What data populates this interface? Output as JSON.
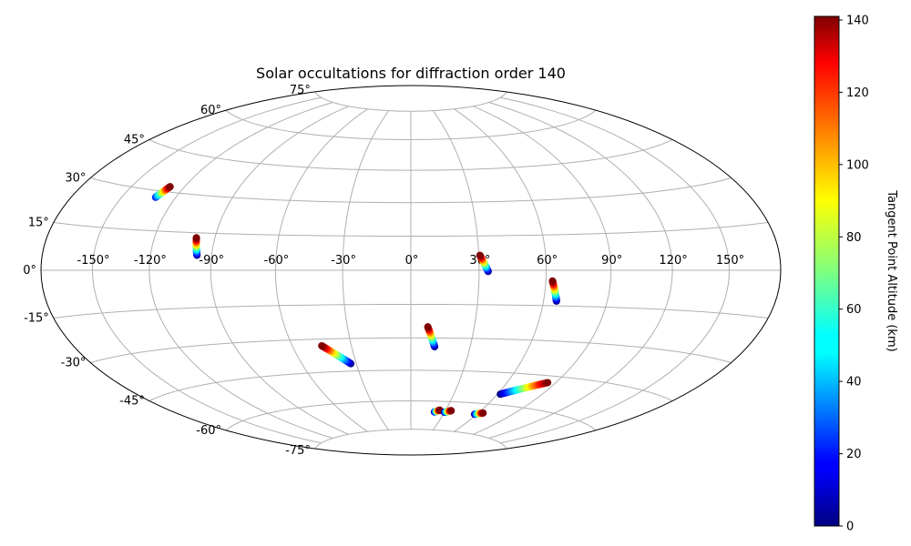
{
  "chart_data": {
    "type": "scatter",
    "title": "Solar occultations for diffraction order 140",
    "projection": "hammer",
    "grid": true,
    "longitude_ticks": [
      "-150°",
      "-120°",
      "-90°",
      "-60°",
      "-30°",
      "0°",
      "30°",
      "60°",
      "90°",
      "120°",
      "150°"
    ],
    "longitude_tick_values": [
      -150,
      -120,
      -90,
      -60,
      -30,
      0,
      30,
      60,
      90,
      120,
      150
    ],
    "latitude_ticks": [
      "75°",
      "60°",
      "45°",
      "30°",
      "15°",
      "0°",
      "-15°",
      "-30°",
      "-45°",
      "-60°",
      "-75°"
    ],
    "latitude_tick_values": [
      75,
      60,
      45,
      30,
      15,
      0,
      -15,
      -30,
      -45,
      -60,
      -75
    ],
    "colorbar": {
      "label": "Tangent Point Altitude (km)",
      "colormap": "jet",
      "range": [
        0,
        141
      ],
      "ticks": [
        "0",
        "20",
        "40",
        "60",
        "80",
        "100",
        "120",
        "140"
      ],
      "tick_values": [
        0,
        20,
        40,
        60,
        80,
        100,
        120,
        140
      ]
    },
    "series": [
      {
        "lon_start": -131,
        "lat_start": 27.5,
        "lon_end": -128,
        "lat_end": 32,
        "alt_start": 20,
        "alt_end": 141
      },
      {
        "lon_start": -97,
        "lat_start": 6,
        "lon_end": -99,
        "lat_end": 13,
        "alt_start": 0,
        "alt_end": 141
      },
      {
        "lon_start": 34,
        "lat_start": -0.5,
        "lon_end": 30.5,
        "lat_end": 6.5,
        "alt_start": 0,
        "alt_end": 141
      },
      {
        "lon_start": 66,
        "lat_start": -13,
        "lon_end": 63,
        "lat_end": -4.5,
        "alt_start": 0,
        "alt_end": 141
      },
      {
        "lon_start": 12,
        "lat_start": -34,
        "lon_end": 8,
        "lat_end": -25,
        "alt_start": 0,
        "alt_end": 141
      },
      {
        "lon_start": -33,
        "lat_start": -41.5,
        "lon_end": -45,
        "lat_end": -33,
        "alt_start": 0,
        "alt_end": 141
      },
      {
        "lon_start": 62,
        "lat_start": -55,
        "lon_end": 85,
        "lat_end": -48,
        "alt_start": 0,
        "alt_end": 141
      },
      {
        "lon_start": 21,
        "lat_start": -65.5,
        "lon_end": 25,
        "lat_end": -64.5,
        "alt_start": 0,
        "alt_end": 141
      },
      {
        "lon_start": 30,
        "lat_start": -65.5,
        "lon_end": 35,
        "lat_end": -64.5,
        "alt_start": 0,
        "alt_end": 141
      },
      {
        "lon_start": 58,
        "lat_start": -65.5,
        "lon_end": 64,
        "lat_end": -64.5,
        "alt_start": 0,
        "alt_end": 141
      }
    ]
  }
}
